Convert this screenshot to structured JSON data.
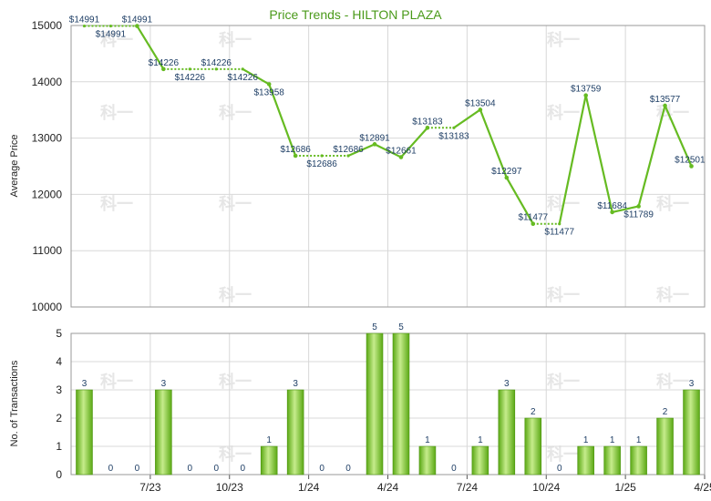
{
  "chart_data": [
    {
      "type": "line",
      "title": "Price Trends - HILTON PLAZA",
      "ylabel": "Average Price",
      "ylim": [
        10000,
        15000
      ],
      "yticks": [
        10000,
        11000,
        12000,
        13000,
        14000,
        15000
      ],
      "grid": true,
      "points": [
        {
          "y": 14991,
          "label": "$14991",
          "filled": false
        },
        {
          "y": 14991,
          "label": "$14991",
          "filled": false
        },
        {
          "y": 14991,
          "label": "$14991",
          "filled": true
        },
        {
          "y": 14226,
          "label": "$14226",
          "filled": true
        },
        {
          "y": 14226,
          "label": "$14226",
          "filled": false
        },
        {
          "y": 14226,
          "label": "$14226",
          "filled": false
        },
        {
          "y": 14226,
          "label": "$14226",
          "filled": false
        },
        {
          "y": 13958,
          "label": "$13958",
          "filled": true
        },
        {
          "y": 12686,
          "label": "$12686",
          "filled": true
        },
        {
          "y": 12686,
          "label": "$12686",
          "filled": false
        },
        {
          "y": 12686,
          "label": "$12686",
          "filled": false
        },
        {
          "y": 12891,
          "label": "$12891",
          "filled": true
        },
        {
          "y": 12661,
          "label": "$12661",
          "filled": true
        },
        {
          "y": 13183,
          "label": "$13183",
          "filled": true
        },
        {
          "y": 13183,
          "label": "$13183",
          "filled": false
        },
        {
          "y": 13504,
          "label": "$13504",
          "filled": true
        },
        {
          "y": 12297,
          "label": "$12297",
          "filled": true
        },
        {
          "y": 11477,
          "label": "$11477",
          "filled": true
        },
        {
          "y": 11477,
          "label": "$11477",
          "filled": false
        },
        {
          "y": 13759,
          "label": "$13759",
          "filled": true
        },
        {
          "y": 11684,
          "label": "$11684",
          "filled": true
        },
        {
          "y": 11789,
          "label": "$11789",
          "filled": true
        },
        {
          "y": 13577,
          "label": "$13577",
          "filled": true
        },
        {
          "y": 12501,
          "label": "$12501",
          "filled": true
        }
      ]
    },
    {
      "type": "bar",
      "ylabel": "No. of Transactions",
      "ylim": [
        0,
        5
      ],
      "yticks": [
        0,
        1,
        2,
        3,
        4,
        5
      ],
      "grid": true,
      "values": [
        3,
        0,
        0,
        3,
        0,
        0,
        0,
        1,
        3,
        0,
        0,
        5,
        5,
        1,
        0,
        1,
        3,
        2,
        0,
        1,
        1,
        1,
        2,
        3
      ],
      "xticks": [
        {
          "index": 2,
          "label": "7/23"
        },
        {
          "index": 5,
          "label": "10/23"
        },
        {
          "index": 8,
          "label": "1/24"
        },
        {
          "index": 11,
          "label": "4/24"
        },
        {
          "index": 14,
          "label": "7/24"
        },
        {
          "index": 17,
          "label": "10/24"
        },
        {
          "index": 20,
          "label": "1/25"
        },
        {
          "index": 23,
          "label": "4/25"
        }
      ]
    }
  ],
  "watermark": "科一",
  "colors": {
    "line": "#66bb22",
    "bar_dark": "#5aa814",
    "bar_light": "#c6ec8c",
    "grid": "#d8d8d8",
    "axis": "#555555",
    "title": "#4a9a1a"
  }
}
